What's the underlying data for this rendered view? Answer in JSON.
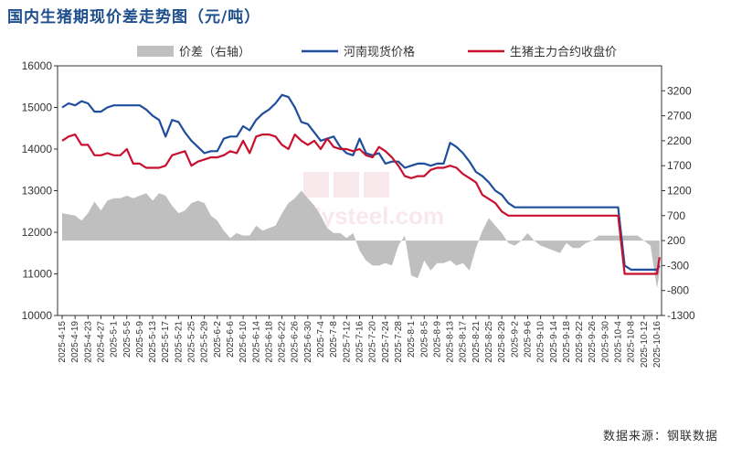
{
  "title": "国内生猪期现价差走势图（元/吨）",
  "source": "数据来源：钢联数据",
  "watermark": "钢铁 Mysteel.com",
  "colors": {
    "spread": "#bfbfbf",
    "henan": "#1f4e9c",
    "futures": "#c8102e"
  },
  "chart_data": {
    "type": "line",
    "categories": [
      "2025-4-15",
      "2025-4-19",
      "2025-4-23",
      "2025-4-27",
      "2025-5-1",
      "2025-5-5",
      "2025-5-9",
      "2025-5-13",
      "2025-5-17",
      "2025-5-21",
      "2025-5-25",
      "2025-5-29",
      "2025-6-2",
      "2025-6-6",
      "2025-6-10",
      "2025-6-14",
      "2025-6-18",
      "2025-6-22",
      "2025-6-26",
      "2025-6-30",
      "2025-7-4",
      "2025-7-8",
      "2025-7-12",
      "2025-7-16",
      "2025-7-20",
      "2025-7-24",
      "2025-7-28",
      "2025-8-1",
      "2025-8-5",
      "2025-8-9",
      "2025-8-13",
      "2025-8-17",
      "2025-8-21",
      "2025-8-25",
      "2025-8-29",
      "2025-9-2",
      "2025-9-6",
      "2025-9-10",
      "2025-9-14",
      "2025-9-18",
      "2025-9-22",
      "2025-9-26",
      "2025-9-30",
      "2025-10-4",
      "2025-10-8",
      "2025-10-12",
      "2025-10-16"
    ],
    "y_left": {
      "min": 10000,
      "max": 16000,
      "ticks": [
        10000,
        11000,
        12000,
        13000,
        14000,
        15000,
        16000
      ]
    },
    "y_right": {
      "min": -1300,
      "max": 3700,
      "ticks": [
        -1300,
        -800,
        -300,
        200,
        700,
        1200,
        1700,
        2200,
        2700,
        3200
      ]
    },
    "legend": {
      "placement": "top",
      "entries": [
        "价差（右轴）",
        "河南现货价格",
        "生猪主力合约收盘价"
      ]
    },
    "series": [
      {
        "name": "价差（右轴）",
        "type": "area",
        "axis": "right",
        "color": "#bfbfbf",
        "x": [
          0,
          1,
          1.5,
          2,
          2.5,
          3,
          3.5,
          4,
          4.5,
          5,
          5.5,
          6,
          6.5,
          7,
          7.5,
          8,
          8.5,
          9,
          9.5,
          10,
          10.5,
          11,
          11.5,
          12,
          12.5,
          13,
          13.5,
          14,
          14.5,
          15,
          15.5,
          16,
          16.5,
          17,
          17.5,
          18,
          18.5,
          19,
          19.5,
          20,
          20.5,
          21,
          21.5,
          22,
          22.5,
          23,
          23.5,
          24,
          24.5,
          25,
          25.5,
          26,
          26.5,
          27,
          27.5,
          28,
          28.5,
          29,
          29.5,
          30,
          30.5,
          31,
          31.5,
          32,
          32.5,
          33,
          33.5,
          34,
          34.5,
          35,
          35.5,
          36,
          36.5,
          37,
          37.5,
          38,
          38.5,
          39,
          39.5,
          40,
          40.5,
          41,
          41.5,
          42,
          42.5,
          43,
          43.5,
          44,
          44.5,
          45,
          45.5,
          46,
          46.2
        ],
        "values": [
          750,
          700,
          600,
          750,
          980,
          800,
          1000,
          1050,
          1050,
          1100,
          1050,
          1100,
          1150,
          1000,
          1150,
          1100,
          900,
          750,
          800,
          950,
          1000,
          950,
          700,
          600,
          400,
          250,
          350,
          300,
          300,
          500,
          400,
          450,
          500,
          750,
          950,
          1050,
          1200,
          1050,
          900,
          700,
          450,
          350,
          350,
          250,
          350,
          0,
          -200,
          -300,
          -300,
          -250,
          -300,
          100,
          300,
          -500,
          -550,
          -200,
          -400,
          -250,
          -250,
          -200,
          -300,
          -250,
          -400,
          50,
          400,
          650,
          500,
          350,
          150,
          100,
          200,
          350,
          200,
          100,
          50,
          0,
          -50,
          150,
          50,
          50,
          150,
          200,
          300,
          300,
          300,
          300,
          300,
          300,
          300,
          200,
          100,
          -750,
          -450
        ]
      },
      {
        "name": "河南现货价格",
        "type": "line",
        "axis": "left",
        "color": "#1f4e9c",
        "x": [
          0,
          0.5,
          1,
          1.5,
          2,
          2.5,
          3,
          3.5,
          4,
          4.5,
          5,
          5.5,
          6,
          6.5,
          7,
          7.5,
          8,
          8.5,
          9,
          9.5,
          10,
          10.5,
          11,
          11.5,
          12,
          12.5,
          13,
          13.5,
          14,
          14.5,
          15,
          15.5,
          16,
          16.5,
          17,
          17.5,
          18,
          18.5,
          19,
          19.5,
          20,
          20.5,
          21,
          21.5,
          22,
          22.5,
          23,
          23.5,
          24,
          24.5,
          25,
          25.5,
          26,
          26.5,
          27,
          27.5,
          28,
          28.5,
          29,
          29.5,
          30,
          30.5,
          31,
          31.5,
          32,
          32.5,
          33,
          33.5,
          34,
          34.5,
          35,
          35.5,
          36,
          36.5,
          37,
          37.5,
          38,
          38.5,
          39,
          39.5,
          40,
          40.5,
          41,
          41.5,
          42,
          42.5,
          43,
          43.5,
          44,
          44.5,
          45,
          45.5,
          46,
          46.2
        ],
        "values": [
          15000,
          15100,
          15050,
          15150,
          15100,
          14900,
          14900,
          15000,
          15050,
          15050,
          15050,
          15050,
          15050,
          14950,
          14800,
          14700,
          14300,
          14700,
          14650,
          14400,
          14200,
          14050,
          13900,
          13950,
          13950,
          14250,
          14300,
          14300,
          14550,
          14450,
          14700,
          14850,
          14950,
          15100,
          15300,
          15250,
          15000,
          14650,
          14600,
          14400,
          14200,
          14250,
          14300,
          14050,
          13900,
          13850,
          14250,
          13900,
          13850,
          13900,
          13650,
          13700,
          13700,
          13550,
          13600,
          13650,
          13650,
          13600,
          13650,
          13650,
          14150,
          14050,
          13900,
          13700,
          13450,
          13350,
          13200,
          13000,
          12900,
          12700,
          12600,
          12600,
          12600,
          12600,
          12600,
          12600,
          12600,
          12600,
          12600,
          12600,
          12600,
          12600,
          12600,
          12600,
          12600,
          12600,
          12600,
          11200,
          11100,
          11100,
          11100,
          11100,
          11100,
          11200
        ]
      },
      {
        "name": "生猪主力合约收盘价",
        "type": "line",
        "axis": "left",
        "color": "#c8102e",
        "x": [
          0,
          0.5,
          1,
          1.5,
          2,
          2.5,
          3,
          3.5,
          4,
          4.5,
          5,
          5.5,
          6,
          6.5,
          7,
          7.5,
          8,
          8.5,
          9,
          9.5,
          10,
          10.5,
          11,
          11.5,
          12,
          12.5,
          13,
          13.5,
          14,
          14.5,
          15,
          15.5,
          16,
          16.5,
          17,
          17.5,
          18,
          18.5,
          19,
          19.5,
          20,
          20.5,
          21,
          21.5,
          22,
          22.5,
          23,
          23.5,
          24,
          24.5,
          25,
          25.5,
          26,
          26.5,
          27,
          27.5,
          28,
          28.5,
          29,
          29.5,
          30,
          30.5,
          31,
          31.5,
          32,
          32.5,
          33,
          33.5,
          34,
          34.5,
          35,
          35.5,
          36,
          36.5,
          37,
          37.5,
          38,
          38.5,
          39,
          39.5,
          40,
          40.5,
          41,
          41.5,
          42,
          42.5,
          43,
          43.5,
          44,
          44.5,
          45,
          45.5,
          46,
          46.2
        ],
        "values": [
          14200,
          14300,
          14350,
          14100,
          14100,
          13850,
          13850,
          13900,
          13850,
          13850,
          14000,
          13650,
          13650,
          13550,
          13550,
          13550,
          13600,
          13850,
          13900,
          13950,
          13600,
          13700,
          13750,
          13800,
          13800,
          13850,
          13950,
          13900,
          14200,
          13900,
          14300,
          14350,
          14350,
          14300,
          14100,
          14000,
          14350,
          14200,
          14100,
          14200,
          14000,
          14250,
          14050,
          14000,
          14000,
          13950,
          14000,
          13850,
          13800,
          14050,
          13950,
          13800,
          13600,
          13350,
          13300,
          13350,
          13350,
          13500,
          13550,
          13550,
          13600,
          13550,
          13400,
          13300,
          13200,
          12900,
          12800,
          12700,
          12500,
          12400,
          12400,
          12400,
          12400,
          12400,
          12400,
          12400,
          12400,
          12400,
          12400,
          12400,
          12400,
          12400,
          12400,
          12400,
          12400,
          12400,
          12400,
          11000,
          11000,
          11000,
          11000,
          11000,
          11000,
          11400
        ]
      }
    ]
  }
}
